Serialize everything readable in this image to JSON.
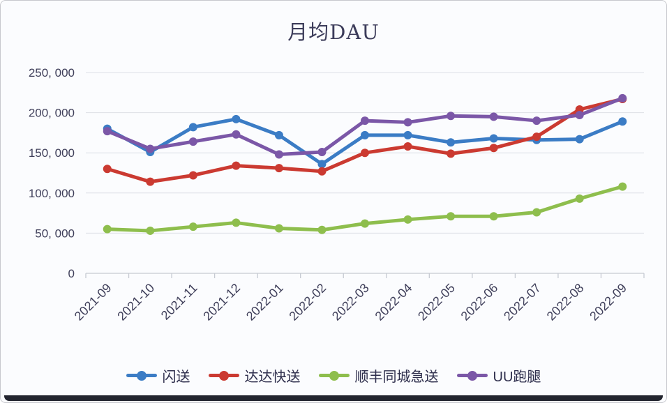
{
  "chart_data": {
    "type": "line",
    "title": "月均DAU",
    "xlabel": "",
    "ylabel": "",
    "categories": [
      "2021-09",
      "2021-10",
      "2021-11",
      "2021-12",
      "2022-01",
      "2022-02",
      "2022-03",
      "2022-04",
      "2022-05",
      "2022-06",
      "2022-07",
      "2022-08",
      "2022-09"
    ],
    "series": [
      {
        "name": "闪送",
        "color": "#3b7cc5",
        "values": [
          180000,
          151000,
          182000,
          192000,
          172000,
          136000,
          172000,
          172000,
          163000,
          168000,
          166000,
          167000,
          189000
        ]
      },
      {
        "name": "达达快送",
        "color": "#cb3a31",
        "values": [
          130000,
          114000,
          122000,
          134000,
          131000,
          127000,
          150000,
          158000,
          149000,
          156000,
          170000,
          204000,
          217000
        ]
      },
      {
        "name": "顺丰同城急送",
        "color": "#8ebe4d",
        "values": [
          55000,
          53000,
          58000,
          63000,
          56000,
          54000,
          62000,
          67000,
          71000,
          71000,
          76000,
          93000,
          108000
        ]
      },
      {
        "name": "UU跑腿",
        "color": "#7b57a7",
        "values": [
          177000,
          155000,
          164000,
          173000,
          148000,
          151000,
          190000,
          188000,
          196000,
          195000,
          190000,
          197000,
          218000
        ]
      }
    ],
    "ylim": [
      0,
      250000
    ],
    "ytick_interval": 50000,
    "ytick_labels": [
      "0",
      "50, 000",
      "100, 000",
      "150, 000",
      "200, 000",
      "250, 000"
    ],
    "grid": true,
    "legend_position": "bottom"
  },
  "style": {
    "card_background": "#fbfcfe",
    "card_border": "#c7c8cd",
    "bottom_bar": "#23252f",
    "title_color": "#3c3c5a",
    "axis_text_color": "#3f3f5a",
    "legend_text_color": "#2e2e4c",
    "gridline_color": "#dcdfe5",
    "axis_line_color": "#c6cad2"
  }
}
